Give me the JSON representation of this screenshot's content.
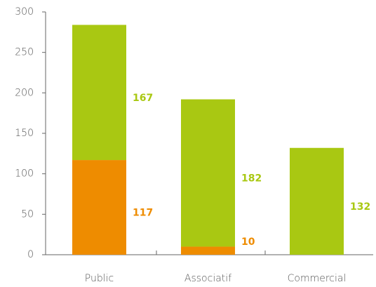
{
  "chart_data": {
    "type": "stacked-bar",
    "categories": [
      "Public",
      "Associatif",
      "Commercial"
    ],
    "series": [
      {
        "color": "#ee8c00",
        "values": [
          117,
          10,
          null
        ]
      },
      {
        "color": "#a9c812",
        "values": [
          167,
          182,
          132
        ]
      }
    ],
    "ylim": [
      0,
      300
    ],
    "yticks": [
      0,
      50,
      100,
      150,
      200,
      250,
      300
    ],
    "grid": false
  }
}
